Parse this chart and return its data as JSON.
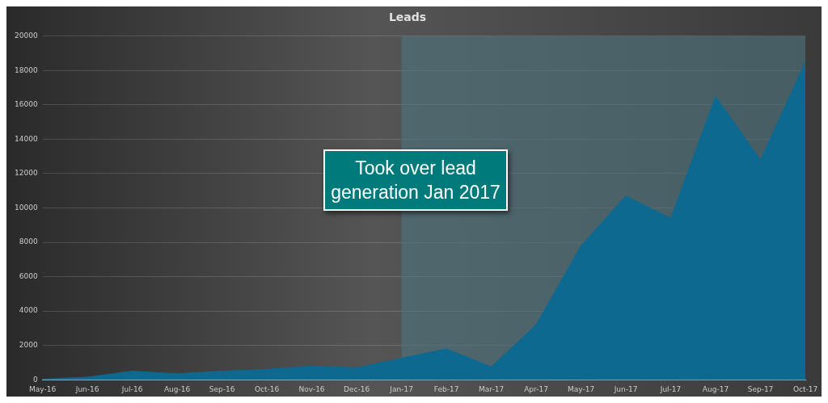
{
  "chart_data": {
    "type": "area",
    "title": "Leads",
    "categories": [
      "May-16",
      "Jun-16",
      "Jul-16",
      "Aug-16",
      "Sep-16",
      "Oct-16",
      "Nov-16",
      "Dec-16",
      "Jan-17",
      "Feb-17",
      "Mar-17",
      "Apr-17",
      "May-17",
      "Jun-17",
      "Jul-17",
      "Aug-17",
      "Sep-17",
      "Oct-17"
    ],
    "series": [
      {
        "color": "#0e6990",
        "values": [
          30,
          150,
          500,
          350,
          500,
          600,
          800,
          700,
          1250,
          1800,
          750,
          3200,
          7800,
          10700,
          9400,
          16500,
          12800,
          18500
        ]
      }
    ],
    "ylim": [
      0,
      20000
    ],
    "yticks": [
      0,
      2000,
      4000,
      6000,
      8000,
      10000,
      12000,
      14000,
      16000,
      18000,
      20000
    ],
    "grid": "y",
    "legend": false,
    "bands": [
      {
        "axis": "x",
        "from": "Jan-17",
        "to": "Oct-17",
        "color": "#4e7580"
      }
    ],
    "annotations": [
      "Took over lead generation Jan 2017"
    ]
  }
}
